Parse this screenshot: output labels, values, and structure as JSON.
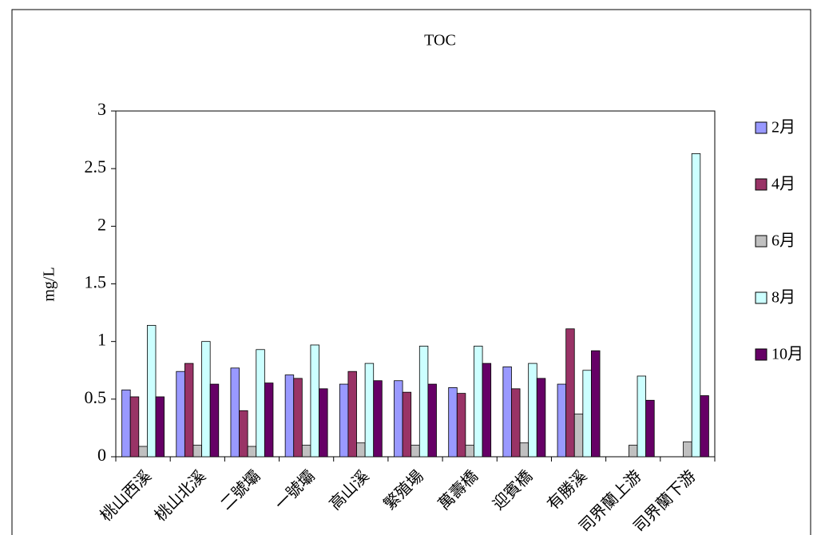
{
  "chart_data": {
    "type": "bar",
    "title": "TOC",
    "y_label": "mg/L",
    "categories": [
      "桃山西溪",
      "桃山北溪",
      "二號壩",
      "一號壩",
      "高山溪",
      "繁殖場",
      "萬壽橋",
      "迎賓橋",
      "有勝溪",
      "司界蘭上游",
      "司界蘭下游"
    ],
    "series": [
      {
        "name": "2月",
        "color": "#9999ff",
        "values": [
          0.58,
          0.74,
          0.77,
          0.71,
          0.63,
          0.66,
          0.6,
          0.78,
          0.63,
          null,
          null
        ]
      },
      {
        "name": "4月",
        "color": "#993366",
        "values": [
          0.52,
          0.81,
          0.4,
          0.68,
          0.74,
          0.56,
          0.55,
          0.59,
          1.11,
          null,
          null
        ]
      },
      {
        "name": "6月",
        "color": "#c0c0c0",
        "values": [
          0.09,
          0.1,
          0.09,
          0.1,
          0.12,
          0.1,
          0.1,
          0.12,
          0.37,
          0.1,
          0.13
        ]
      },
      {
        "name": "8月",
        "color": "#ccffff",
        "values": [
          1.14,
          1.0,
          0.93,
          0.97,
          0.81,
          0.96,
          0.96,
          0.81,
          0.75,
          0.7,
          2.63
        ]
      },
      {
        "name": "10月",
        "color": "#660066",
        "values": [
          0.52,
          0.63,
          0.64,
          0.59,
          0.66,
          0.63,
          0.81,
          0.68,
          0.92,
          0.49,
          0.53
        ]
      }
    ],
    "ylim": [
      0,
      3
    ],
    "yticks": [
      0,
      0.5,
      1,
      1.5,
      2,
      2.5,
      3
    ],
    "legend": "right"
  }
}
